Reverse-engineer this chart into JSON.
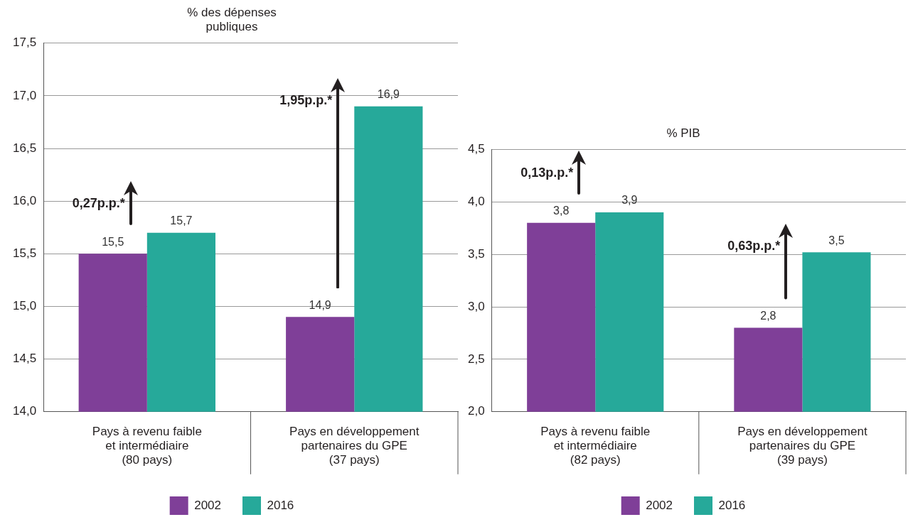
{
  "chart_data": [
    {
      "type": "bar",
      "title": "% des dépenses publiques",
      "categories": [
        "Pays à revenu faible et intermédiaire (80 pays)",
        "Pays en développement partenaires du GPE (37 pays)"
      ],
      "series": [
        {
          "name": "2002",
          "color": "#7f3f98",
          "values": [
            15.5,
            14.9
          ],
          "value_labels": [
            "15,5",
            "14,9"
          ]
        },
        {
          "name": "2016",
          "color": "#26a99a",
          "values": [
            15.7,
            16.9
          ],
          "value_labels": [
            "15,7",
            "16,9"
          ]
        }
      ],
      "ylim": [
        14,
        17.5
      ],
      "yticks": [
        {
          "value": 14,
          "label": "14,0"
        },
        {
          "value": 14.5,
          "label": "14,5"
        },
        {
          "value": 15,
          "label": "15,0"
        },
        {
          "value": 15.5,
          "label": "15,5"
        },
        {
          "value": 16,
          "label": "16,0"
        },
        {
          "value": 16.5,
          "label": "16,5"
        },
        {
          "value": 17,
          "label": "17,0"
        },
        {
          "value": 17.5,
          "label": "17,5"
        }
      ],
      "grid": "y",
      "legend": "bottom",
      "annotations": [
        "0,27p.p.*",
        "1,95p.p.*"
      ]
    },
    {
      "type": "bar",
      "title": "% PIB",
      "categories": [
        "Pays à revenu faible et intermédiaire (82 pays)",
        "Pays en développement partenaires du GPE (39 pays)"
      ],
      "series": [
        {
          "name": "2002",
          "color": "#7f3f98",
          "values": [
            3.8,
            2.8
          ],
          "value_labels": [
            "3,8",
            "2,8"
          ]
        },
        {
          "name": "2016",
          "color": "#26a99a",
          "values": [
            3.9,
            3.52
          ],
          "value_labels": [
            "3,9",
            "3,5"
          ]
        }
      ],
      "ylim": [
        2,
        4.5
      ],
      "yticks": [
        {
          "value": 2,
          "label": "2,0"
        },
        {
          "value": 2.5,
          "label": "2,5"
        },
        {
          "value": 3,
          "label": "3,0"
        },
        {
          "value": 3.5,
          "label": "3,5"
        },
        {
          "value": 4,
          "label": "4,0"
        },
        {
          "value": 4.5,
          "label": "4,5"
        }
      ],
      "grid": "y",
      "legend": "bottom",
      "annotations": [
        "0,13p.p.*",
        "0,63p.p.*"
      ]
    }
  ]
}
